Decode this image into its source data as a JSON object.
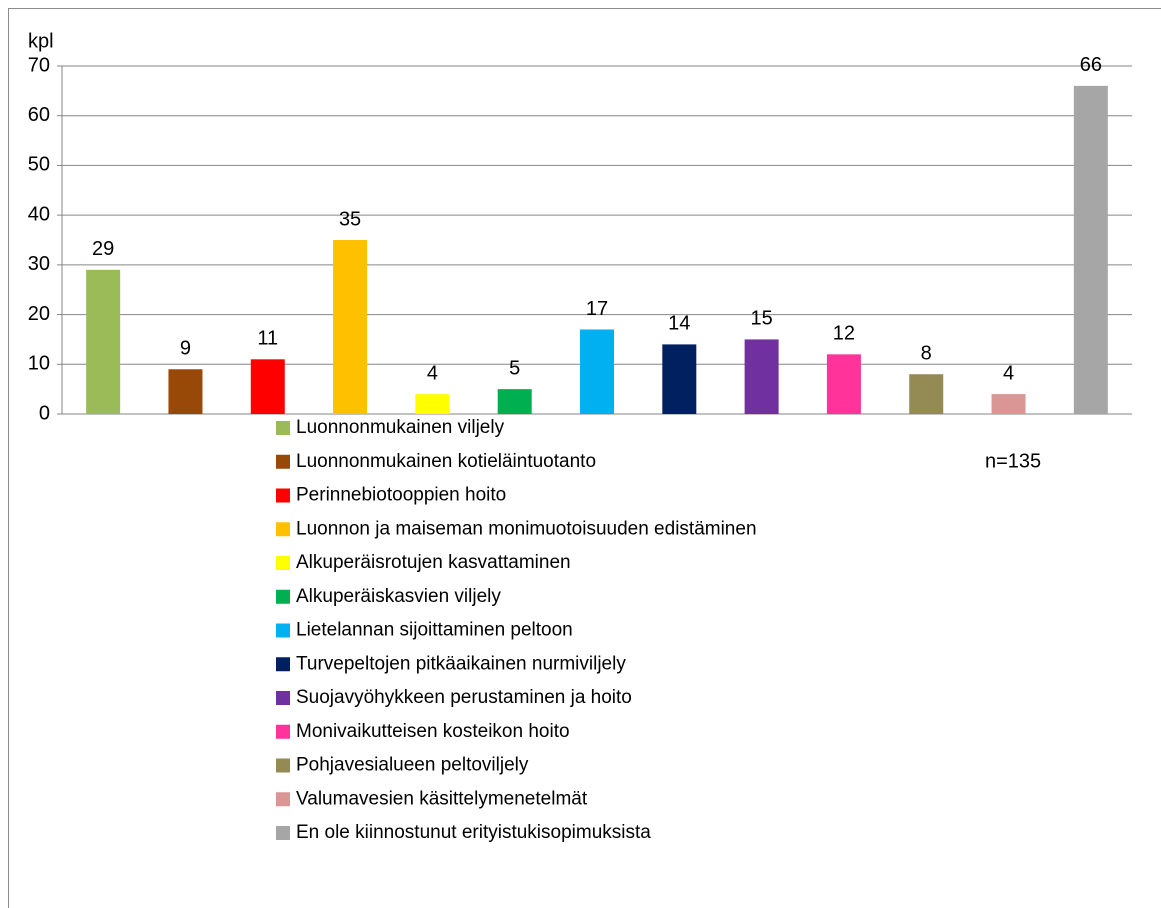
{
  "chart_data": {
    "type": "bar",
    "y_label": "kpl",
    "annotation": "n=135",
    "categories": [
      "Luonnonmukainen viljely",
      "Luonnonmukainen kotieläintuotanto",
      "Perinnebiotooppien hoito",
      "Luonnon ja maiseman monimuotoisuuden edistäminen",
      "Alkuperäisrotujen kasvattaminen",
      "Alkuperäiskasvien viljely",
      "Lietelannan sijoittaminen peltoon",
      "Turvepeltojen pitkäaikainen nurmiviljely",
      "Suojavyöhykkeen perustaminen ja hoito",
      "Monivaikutteisen kosteikon hoito",
      "Pohjavesialueen peltoviljely",
      "Valumavesien käsittelymenetelmät",
      "En ole kiinnostunut erityistukisopimuksista"
    ],
    "values": [
      29,
      9,
      11,
      35,
      4,
      5,
      17,
      14,
      15,
      12,
      8,
      4,
      66
    ],
    "colors": [
      "#9bbb59",
      "#984807",
      "#ff0000",
      "#ffc000",
      "#ffff00",
      "#00b050",
      "#00b0f0",
      "#002060",
      "#7030a0",
      "#ff3399",
      "#948a54",
      "#d99694",
      "#a6a6a6"
    ],
    "ylim": [
      0,
      70
    ],
    "yticks": [
      0,
      10,
      20,
      30,
      40,
      50,
      60,
      70
    ],
    "grid": true,
    "legend": "bottom"
  }
}
